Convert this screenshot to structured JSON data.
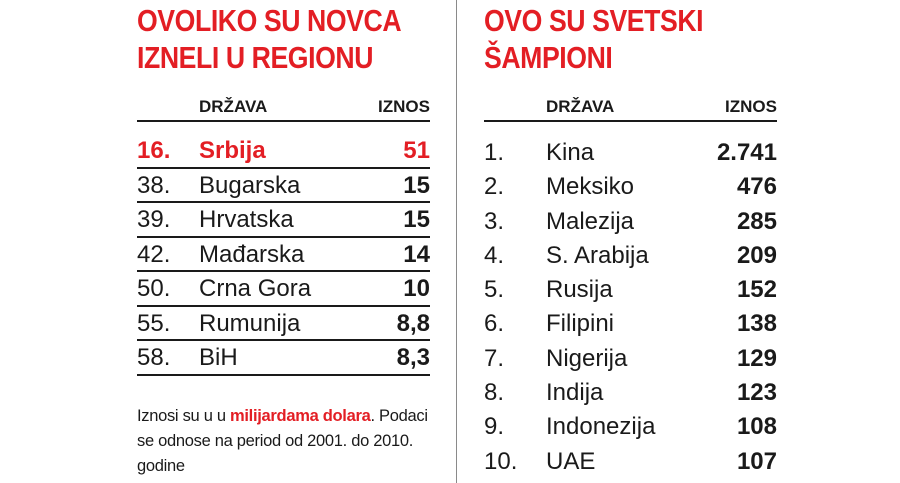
{
  "left": {
    "title_line1": "OVOLIKO SU NOVCA",
    "title_line2": "IZNELI U REGIONU",
    "header_country": "DRŽAVA",
    "header_amount": "IZNOS",
    "rows": [
      {
        "rank": "16.",
        "country": "Srbija",
        "amount": "51",
        "highlight": true
      },
      {
        "rank": "38.",
        "country": "Bugarska",
        "amount": "15"
      },
      {
        "rank": "39.",
        "country": "Hrvatska",
        "amount": "15"
      },
      {
        "rank": "42.",
        "country": "Mađarska",
        "amount": "14"
      },
      {
        "rank": "50.",
        "country": "Crna Gora",
        "amount": "10"
      },
      {
        "rank": "55.",
        "country": "Rumunija",
        "amount": "8,8"
      },
      {
        "rank": "58.",
        "country": "BiH",
        "amount": "8,3"
      }
    ]
  },
  "right": {
    "title_line1": "OVO SU SVETSKI",
    "title_line2": "ŠAMPIONI",
    "header_country": "DRŽAVA",
    "header_amount": "IZNOS",
    "rows": [
      {
        "rank": "1.",
        "country": "Kina",
        "amount": "2.741"
      },
      {
        "rank": "2.",
        "country": "Meksiko",
        "amount": "476"
      },
      {
        "rank": "3.",
        "country": "Malezija",
        "amount": "285"
      },
      {
        "rank": "4.",
        "country": "S. Arabija",
        "amount": "209"
      },
      {
        "rank": "5.",
        "country": "Rusija",
        "amount": "152"
      },
      {
        "rank": "6.",
        "country": "Filipini",
        "amount": "138"
      },
      {
        "rank": "7.",
        "country": "Nigerija",
        "amount": "129"
      },
      {
        "rank": "8.",
        "country": "Indija",
        "amount": "123"
      },
      {
        "rank": "9.",
        "country": "Indonezija",
        "amount": "108"
      },
      {
        "rank": "10.",
        "country": "UAE",
        "amount": "107"
      }
    ]
  },
  "note": {
    "part1": "Iznosi su u u ",
    "highlight1": "milijardama",
    "highlight2": "dolara",
    "part2": ". Podaci se odnose na period od 2001. do 2010. godine"
  },
  "colors": {
    "accent": "#e31e24",
    "text": "#1a1a1a"
  }
}
